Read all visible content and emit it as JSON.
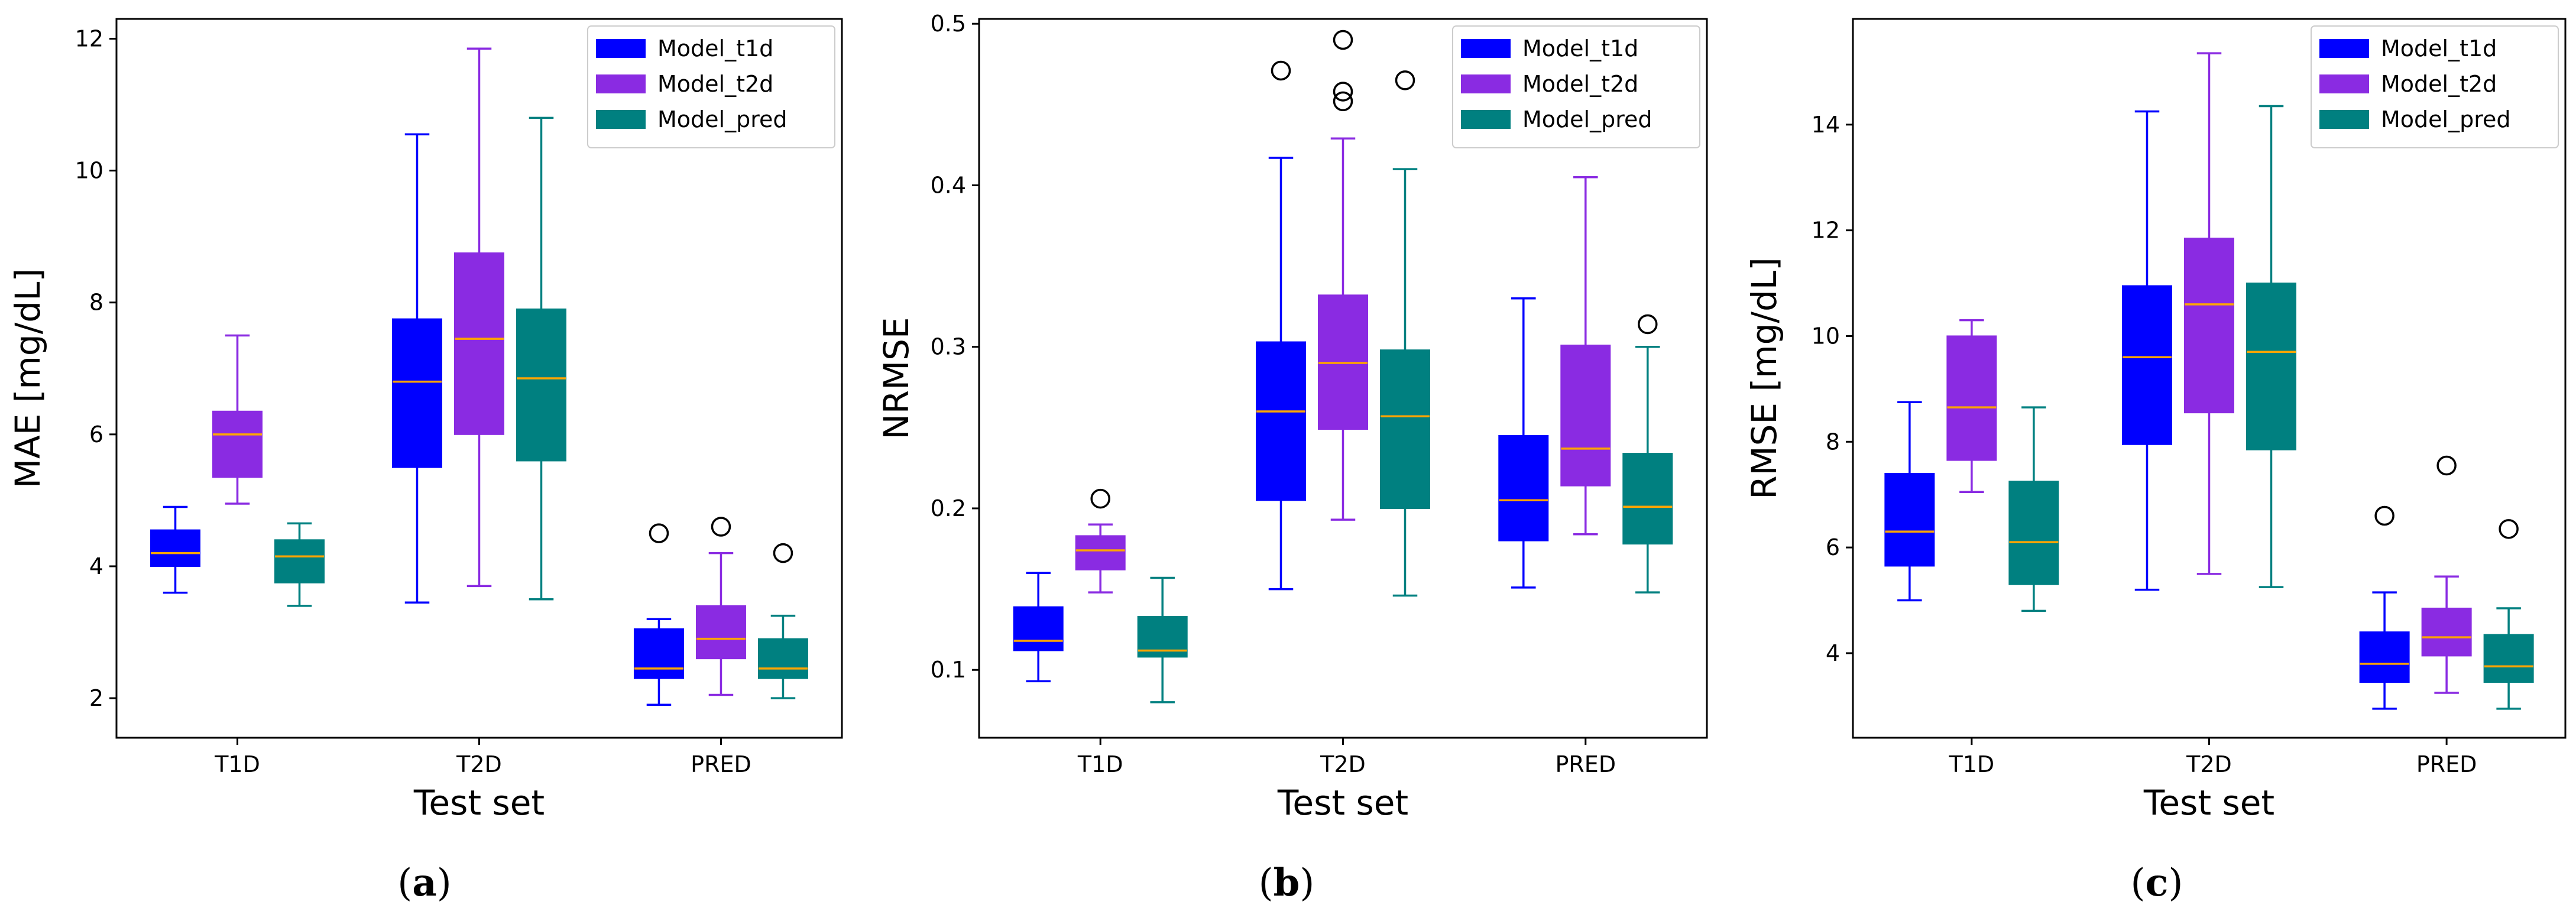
{
  "legend_colors": {
    "Model_t1d": "#0000FF",
    "Model_t2d": "#8A2BE2",
    "Model_pred": "#008080"
  },
  "chart_data": [
    {
      "type": "boxplot",
      "caption_letter": "a",
      "xlabel": "Test set",
      "ylabel": "MAE [mg/dL]",
      "ylim": [
        1.4,
        12.3
      ],
      "yticks": [
        2,
        4,
        6,
        8,
        10,
        12
      ],
      "yticklabels": [
        "2",
        "4",
        "6",
        "8",
        "10",
        "12"
      ],
      "categories": [
        "T1D",
        "T2D",
        "PRED"
      ],
      "legend": [
        "Model_t1d",
        "Model_t2d",
        "Model_pred"
      ],
      "legend_position": "top-right",
      "series": [
        {
          "name": "Model_t1d",
          "color": "#0000FF",
          "boxes": [
            {
              "whislo": 3.6,
              "q1": 4.0,
              "med": 4.2,
              "q3": 4.55,
              "whishi": 4.9,
              "fliers": []
            },
            {
              "whislo": 3.45,
              "q1": 5.5,
              "med": 6.8,
              "q3": 7.75,
              "whishi": 10.55,
              "fliers": []
            },
            {
              "whislo": 1.9,
              "q1": 2.3,
              "med": 2.45,
              "q3": 3.05,
              "whishi": 3.2,
              "fliers": [
                4.5
              ]
            }
          ]
        },
        {
          "name": "Model_t2d",
          "color": "#8A2BE2",
          "boxes": [
            {
              "whislo": 4.95,
              "q1": 5.35,
              "med": 6.0,
              "q3": 6.35,
              "whishi": 7.5,
              "fliers": []
            },
            {
              "whislo": 3.7,
              "q1": 6.0,
              "med": 7.45,
              "q3": 8.75,
              "whishi": 11.85,
              "fliers": []
            },
            {
              "whislo": 2.05,
              "q1": 2.6,
              "med": 2.9,
              "q3": 3.4,
              "whishi": 4.2,
              "fliers": [
                4.6
              ]
            }
          ]
        },
        {
          "name": "Model_pred",
          "color": "#008080",
          "boxes": [
            {
              "whislo": 3.4,
              "q1": 3.75,
              "med": 4.15,
              "q3": 4.4,
              "whishi": 4.65,
              "fliers": []
            },
            {
              "whislo": 3.5,
              "q1": 5.6,
              "med": 6.85,
              "q3": 7.9,
              "whishi": 10.8,
              "fliers": []
            },
            {
              "whislo": 2.0,
              "q1": 2.3,
              "med": 2.45,
              "q3": 2.9,
              "whishi": 3.25,
              "fliers": [
                4.2
              ]
            }
          ]
        }
      ]
    },
    {
      "type": "boxplot",
      "caption_letter": "b",
      "xlabel": "Test set",
      "ylabel": "NRMSE",
      "ylim": [
        0.058,
        0.503
      ],
      "yticks": [
        0.1,
        0.2,
        0.3,
        0.4,
        0.5
      ],
      "yticklabels": [
        "0.1",
        "0.2",
        "0.3",
        "0.4",
        "0.5"
      ],
      "categories": [
        "T1D",
        "T2D",
        "PRED"
      ],
      "legend": [
        "Model_t1d",
        "Model_t2d",
        "Model_pred"
      ],
      "legend_position": "top-right",
      "series": [
        {
          "name": "Model_t1d",
          "color": "#0000FF",
          "boxes": [
            {
              "whislo": 0.093,
              "q1": 0.112,
              "med": 0.118,
              "q3": 0.139,
              "whishi": 0.16,
              "fliers": []
            },
            {
              "whislo": 0.15,
              "q1": 0.205,
              "med": 0.26,
              "q3": 0.303,
              "whishi": 0.417,
              "fliers": [
                0.471
              ]
            },
            {
              "whislo": 0.151,
              "q1": 0.18,
              "med": 0.205,
              "q3": 0.245,
              "whishi": 0.33,
              "fliers": []
            }
          ]
        },
        {
          "name": "Model_t2d",
          "color": "#8A2BE2",
          "boxes": [
            {
              "whislo": 0.148,
              "q1": 0.162,
              "med": 0.174,
              "q3": 0.183,
              "whishi": 0.19,
              "fliers": [
                0.206
              ]
            },
            {
              "whislo": 0.193,
              "q1": 0.249,
              "med": 0.29,
              "q3": 0.332,
              "whishi": 0.429,
              "fliers": [
                0.49,
                0.458,
                0.452
              ]
            },
            {
              "whislo": 0.184,
              "q1": 0.214,
              "med": 0.237,
              "q3": 0.301,
              "whishi": 0.405,
              "fliers": []
            }
          ]
        },
        {
          "name": "Model_pred",
          "color": "#008080",
          "boxes": [
            {
              "whislo": 0.08,
              "q1": 0.108,
              "med": 0.112,
              "q3": 0.133,
              "whishi": 0.157,
              "fliers": []
            },
            {
              "whislo": 0.146,
              "q1": 0.2,
              "med": 0.257,
              "q3": 0.298,
              "whishi": 0.41,
              "fliers": [
                0.465
              ]
            },
            {
              "whislo": 0.148,
              "q1": 0.178,
              "med": 0.201,
              "q3": 0.234,
              "whishi": 0.3,
              "fliers": [
                0.314
              ]
            }
          ]
        }
      ]
    },
    {
      "type": "boxplot",
      "caption_letter": "c",
      "xlabel": "Test set",
      "ylabel": "RMSE [mg/dL]",
      "ylim": [
        2.4,
        16.0
      ],
      "yticks": [
        4,
        6,
        8,
        10,
        12,
        14
      ],
      "yticklabels": [
        "4",
        "6",
        "8",
        "10",
        "12",
        "14"
      ],
      "categories": [
        "T1D",
        "T2D",
        "PRED"
      ],
      "legend": [
        "Model_t1d",
        "Model_t2d",
        "Model_pred"
      ],
      "legend_position": "top-right",
      "series": [
        {
          "name": "Model_t1d",
          "color": "#0000FF",
          "boxes": [
            {
              "whislo": 5.0,
              "q1": 5.65,
              "med": 6.3,
              "q3": 7.4,
              "whishi": 8.75,
              "fliers": []
            },
            {
              "whislo": 5.2,
              "q1": 7.95,
              "med": 9.6,
              "q3": 10.95,
              "whishi": 14.25,
              "fliers": []
            },
            {
              "whislo": 2.95,
              "q1": 3.45,
              "med": 3.8,
              "q3": 4.4,
              "whishi": 5.15,
              "fliers": [
                6.6
              ]
            }
          ]
        },
        {
          "name": "Model_t2d",
          "color": "#8A2BE2",
          "boxes": [
            {
              "whislo": 7.05,
              "q1": 7.65,
              "med": 8.65,
              "q3": 10.0,
              "whishi": 10.3,
              "fliers": []
            },
            {
              "whislo": 5.5,
              "q1": 8.55,
              "med": 10.6,
              "q3": 11.85,
              "whishi": 15.35,
              "fliers": []
            },
            {
              "whislo": 3.25,
              "q1": 3.95,
              "med": 4.3,
              "q3": 4.85,
              "whishi": 5.45,
              "fliers": [
                7.55
              ]
            }
          ]
        },
        {
          "name": "Model_pred",
          "color": "#008080",
          "boxes": [
            {
              "whislo": 4.8,
              "q1": 5.3,
              "med": 6.1,
              "q3": 7.25,
              "whishi": 8.65,
              "fliers": []
            },
            {
              "whislo": 5.25,
              "q1": 7.85,
              "med": 9.7,
              "q3": 11.0,
              "whishi": 14.35,
              "fliers": []
            },
            {
              "whislo": 2.95,
              "q1": 3.45,
              "med": 3.75,
              "q3": 4.35,
              "whishi": 4.85,
              "fliers": [
                6.35
              ]
            }
          ]
        }
      ]
    }
  ]
}
